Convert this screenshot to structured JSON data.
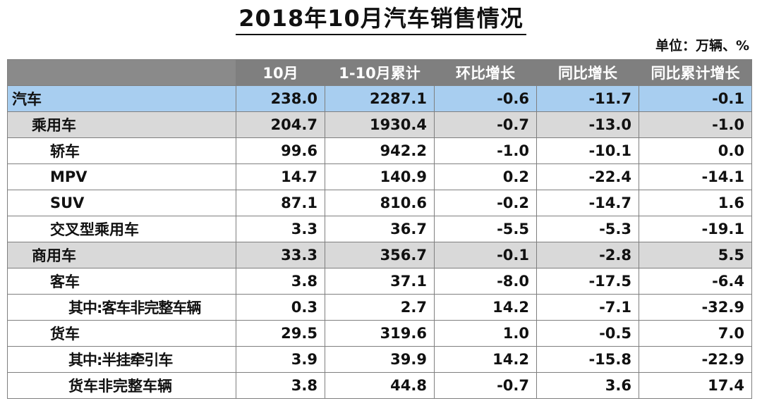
{
  "title": "2018年10月汽车销售情况",
  "unit": "单位：万辆、%",
  "table": {
    "headers": [
      "",
      "10月",
      "1-10月累计",
      "环比增长",
      "同比增长",
      "同比累计增长"
    ],
    "rows": [
      {
        "name": "汽车",
        "level": 0,
        "values": [
          "238.0",
          "2287.1",
          "-0.6",
          "-11.7",
          "-0.1"
        ]
      },
      {
        "name": "乘用车",
        "level": 1,
        "values": [
          "204.7",
          "1930.4",
          "-0.7",
          "-13.0",
          "-1.0"
        ]
      },
      {
        "name": "轿车",
        "level": 2,
        "values": [
          "99.6",
          "942.2",
          "-1.0",
          "-10.1",
          "0.0"
        ]
      },
      {
        "name": "MPV",
        "level": 2,
        "values": [
          "14.7",
          "140.9",
          "0.2",
          "-22.4",
          "-14.1"
        ]
      },
      {
        "name": "SUV",
        "level": 2,
        "values": [
          "87.1",
          "810.6",
          "-0.2",
          "-14.7",
          "1.6"
        ]
      },
      {
        "name": "交叉型乘用车",
        "level": 2,
        "values": [
          "3.3",
          "36.7",
          "-5.5",
          "-5.3",
          "-19.1"
        ]
      },
      {
        "name": "商用车",
        "level": 1,
        "values": [
          "33.3",
          "356.7",
          "-0.1",
          "-2.8",
          "5.5"
        ]
      },
      {
        "name": "客车",
        "level": 2,
        "values": [
          "3.8",
          "37.1",
          "-8.0",
          "-17.5",
          "-6.4"
        ]
      },
      {
        "name": "其中:客车非完整车辆",
        "level": 3,
        "values": [
          "0.3",
          "2.7",
          "14.2",
          "-7.1",
          "-32.9"
        ]
      },
      {
        "name": "货车",
        "level": 2,
        "values": [
          "29.5",
          "319.6",
          "1.0",
          "-0.5",
          "7.0"
        ]
      },
      {
        "name": "其中:半挂牵引车",
        "level": 3,
        "values": [
          "3.9",
          "39.9",
          "14.2",
          "-15.8",
          "-22.9"
        ]
      },
      {
        "name": "货车非完整车辆",
        "level": 3,
        "values": [
          "3.8",
          "44.8",
          "-0.7",
          "3.6",
          "17.4"
        ]
      }
    ]
  },
  "colors": {
    "header_bg": "#7f7f7f",
    "total_row_bg": "#a8cef0",
    "category_row_bg": "#d9d9d9"
  }
}
